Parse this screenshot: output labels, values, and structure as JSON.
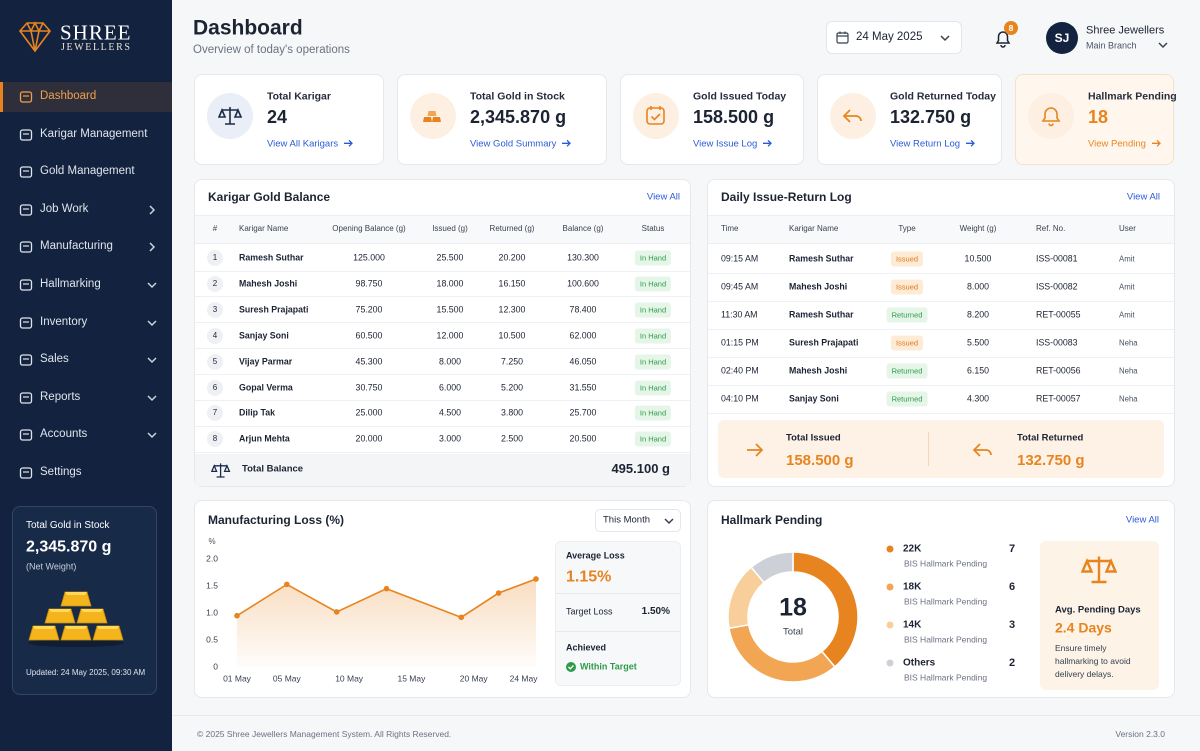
{
  "sidebar": {
    "brand": "SHREE",
    "brand_sub": "JEWELLERS",
    "nav": [
      "Dashboard",
      "Karigar Management",
      "Gold Management",
      "Job Work",
      "Manufacturing",
      "Hallmarking",
      "Inventory",
      "Sales",
      "Reports",
      "Accounts",
      "Settings"
    ],
    "stock_card": {
      "title": "Total Gold in Stock",
      "value": "2,345.870 g",
      "note": "(Net Weight)",
      "updated": "Updated: 24 May 2025, 09:30 AM"
    }
  },
  "header": {
    "title": "Dashboard",
    "subtitle": "Overview of today's operations",
    "date": "24 May 2025",
    "notifications": "8",
    "avatar": "SJ",
    "user": "Shree Jewellers",
    "branch": "Main Branch"
  },
  "kpis": [
    {
      "label": "Total Karigar",
      "value": "24",
      "link": "View All Karigars"
    },
    {
      "label": "Total Gold in Stock",
      "value": "2,345.870 g",
      "link": "View Gold Summary"
    },
    {
      "label": "Gold Issued Today",
      "value": "158.500 g",
      "link": "View Issue Log"
    },
    {
      "label": "Gold Returned Today",
      "value": "132.750 g",
      "link": "View Return Log"
    },
    {
      "label": "Hallmark Pending",
      "value": "18",
      "link": "View Pending"
    }
  ],
  "karigar_balance": {
    "title": "Karigar Gold Balance",
    "view_all": "View All",
    "columns": [
      "#",
      "Karigar Name",
      "Opening Balance (g)",
      "Issued (g)",
      "Returned (g)",
      "Balance (g)",
      "Status"
    ],
    "rows": [
      [
        "1",
        "Ramesh Suthar",
        "125.000",
        "25.500",
        "20.200",
        "130.300",
        "In Hand"
      ],
      [
        "2",
        "Mahesh Joshi",
        "98.750",
        "18.000",
        "16.150",
        "100.600",
        "In Hand"
      ],
      [
        "3",
        "Suresh Prajapati",
        "75.200",
        "15.500",
        "12.300",
        "78.400",
        "In Hand"
      ],
      [
        "4",
        "Sanjay Soni",
        "60.500",
        "12.000",
        "10.500",
        "62.000",
        "In Hand"
      ],
      [
        "5",
        "Vijay Parmar",
        "45.300",
        "8.000",
        "7.250",
        "46.050",
        "In Hand"
      ],
      [
        "6",
        "Gopal Verma",
        "30.750",
        "6.000",
        "5.200",
        "31.550",
        "In Hand"
      ],
      [
        "7",
        "Dilip Tak",
        "25.000",
        "4.500",
        "3.800",
        "25.700",
        "In Hand"
      ],
      [
        "8",
        "Arjun Mehta",
        "20.000",
        "3.000",
        "2.500",
        "20.500",
        "In Hand"
      ]
    ],
    "total_label": "Total Balance",
    "total": "495.100 g"
  },
  "daily_log": {
    "title": "Daily Issue-Return Log",
    "view_all": "View All",
    "columns": [
      "Time",
      "Karigar Name",
      "Type",
      "Weight (g)",
      "Ref. No.",
      "User"
    ],
    "rows": [
      [
        "09:15 AM",
        "Ramesh Suthar",
        "Issued",
        "10.500",
        "ISS-00081",
        "Amit"
      ],
      [
        "09:45 AM",
        "Mahesh Joshi",
        "Issued",
        "8.000",
        "ISS-00082",
        "Amit"
      ],
      [
        "11:30 AM",
        "Ramesh Suthar",
        "Returned",
        "8.200",
        "RET-00055",
        "Amit"
      ],
      [
        "01:15 PM",
        "Suresh Prajapati",
        "Issued",
        "5.500",
        "ISS-00083",
        "Neha"
      ],
      [
        "02:40 PM",
        "Mahesh Joshi",
        "Returned",
        "6.150",
        "RET-00056",
        "Neha"
      ],
      [
        "04:10 PM",
        "Sanjay Soni",
        "Returned",
        "4.300",
        "RET-00057",
        "Neha"
      ]
    ],
    "total_issued_label": "Total Issued",
    "total_issued": "158.500 g",
    "total_returned_label": "Total Returned",
    "total_returned": "132.750 g"
  },
  "manufacturing_panel": {
    "period": "This Month",
    "avg_label": "Average Loss",
    "avg": "1.15%",
    "target_label": "Target Loss",
    "target": "1.50%",
    "achieved_label": "Achieved",
    "achieved": "Within Target"
  },
  "hallmark_panel": {
    "view_all": "View All",
    "avg_title": "Avg. Pending Days",
    "avg": "2.4 Days",
    "note": "Ensure timely hallmarking to avoid delivery delays."
  },
  "footer": {
    "copyright": "© 2025 Shree Jewellers Management System. All Rights Reserved.",
    "version": "Version 2.3.0"
  },
  "chart_data": [
    {
      "type": "line",
      "title": "Manufacturing Loss (%)",
      "y_label": "%",
      "x": [
        1,
        5,
        9,
        13,
        19,
        22,
        25
      ],
      "xlim": [
        1,
        25
      ],
      "xticks": [
        {
          "value": 1,
          "label": "01 May"
        },
        {
          "value": 5,
          "label": "05 May"
        },
        {
          "value": 10,
          "label": "10 May"
        },
        {
          "value": 15,
          "label": "15 May"
        },
        {
          "value": 20,
          "label": "20 May"
        },
        {
          "value": 24,
          "label": "24 May"
        }
      ],
      "ylim": [
        0,
        2
      ],
      "yticks": [
        0,
        0.5,
        {
          "value": 1,
          "label": "1.0"
        },
        1.5,
        {
          "value": 2,
          "label": "2.0"
        }
      ],
      "grid": false,
      "series": [
        {
          "name": "Manufacturing Loss",
          "color": "#e8841f",
          "values": [
            0.95,
            1.53,
            1.02,
            1.45,
            0.92,
            1.37,
            1.63
          ]
        }
      ]
    },
    {
      "type": "pie",
      "title": "Hallmark Pending",
      "categories": [
        "22K",
        "18K",
        "14K",
        "Others"
      ],
      "values": [
        7,
        6,
        3,
        2
      ],
      "colors": [
        "#e8841f",
        "#f2a552",
        "#f8cf9a",
        "#cdd0d6"
      ],
      "sublabel": "BIS Hallmark Pending",
      "total": 18,
      "total_label": "Total"
    }
  ]
}
